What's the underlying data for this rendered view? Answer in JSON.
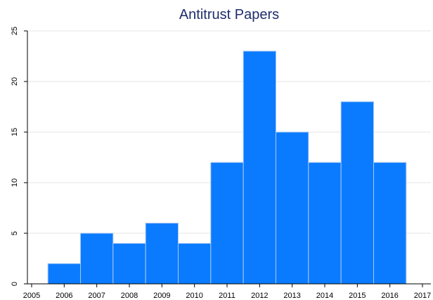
{
  "chart_data": {
    "type": "bar",
    "title": "Antitrust Papers",
    "xlabel": "",
    "ylabel": "",
    "categories": [
      "2006",
      "2007",
      "2008",
      "2009",
      "2010",
      "2011",
      "2012",
      "2013",
      "2014",
      "2015",
      "2016"
    ],
    "values": [
      2,
      5,
      4,
      6,
      4,
      12,
      23,
      15,
      12,
      18,
      12
    ],
    "x_ticks": [
      "2005",
      "2006",
      "2007",
      "2008",
      "2009",
      "2010",
      "2011",
      "2012",
      "2013",
      "2014",
      "2015",
      "2016",
      "2017"
    ],
    "y_ticks": [
      "0",
      "5",
      "10",
      "15",
      "20",
      "25"
    ],
    "xlim": [
      2005,
      2017
    ],
    "ylim": [
      0,
      25
    ],
    "grid": true,
    "legend": "none",
    "colors": {
      "bar_fill": "#0a7bff",
      "bar_edge": "#a9c7f0",
      "title": "#1f2d6b",
      "grid": "#e6e6e6"
    }
  }
}
